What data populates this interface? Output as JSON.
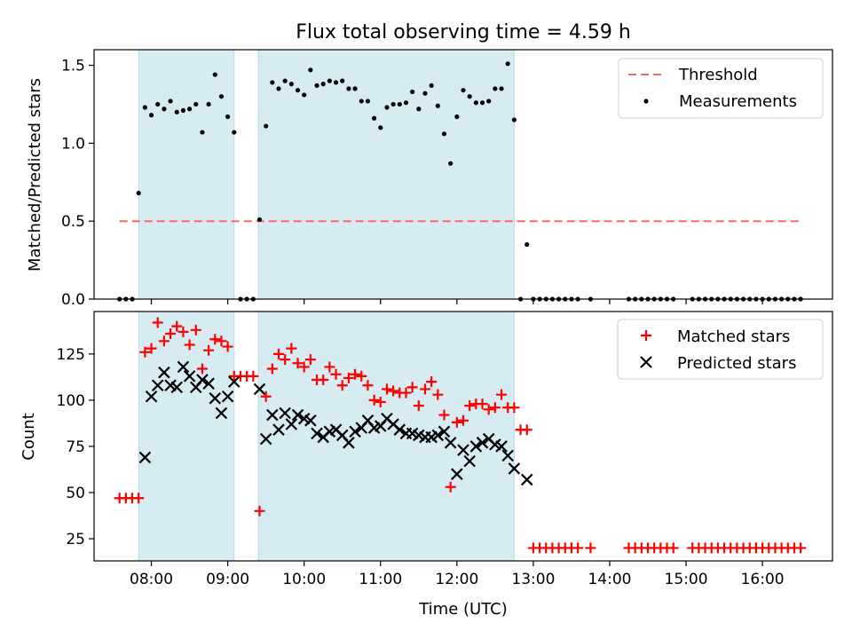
{
  "figure": {
    "title": "Flux total observing time = 4.59 h"
  },
  "chart_data": [
    {
      "type": "scatter",
      "panel": "top",
      "ylabel": "Matched/Predicted stars",
      "ylim": [
        0,
        1.6
      ],
      "yticks": [
        0.0,
        0.5,
        1.0,
        1.5
      ],
      "ytick_labels": [
        "0.0",
        "0.5",
        "1.0",
        "1.5"
      ],
      "grid": false,
      "legend_position": "top-right",
      "shaded_intervals": [
        {
          "start": "07:50",
          "end": "09:05"
        },
        {
          "start": "09:24",
          "end": "12:45"
        }
      ],
      "shade_color": "#add8e6",
      "threshold": {
        "name": "Threshold",
        "value": 0.5,
        "x_start": "07:35",
        "x_end": "16:30",
        "color": "#ff6666",
        "style": "dashed"
      },
      "series": [
        {
          "name": "Measurements",
          "color": "#000000",
          "marker": "dot",
          "x": [
            "07:35",
            "07:40",
            "07:45",
            "07:50",
            "07:55",
            "08:00",
            "08:05",
            "08:10",
            "08:15",
            "08:20",
            "08:25",
            "08:30",
            "08:35",
            "08:40",
            "08:45",
            "08:50",
            "08:55",
            "09:00",
            "09:05",
            "09:10",
            "09:15",
            "09:20",
            "09:25",
            "09:30",
            "09:35",
            "09:40",
            "09:45",
            "09:50",
            "09:55",
            "10:00",
            "10:05",
            "10:10",
            "10:15",
            "10:20",
            "10:25",
            "10:30",
            "10:35",
            "10:40",
            "10:45",
            "10:50",
            "10:55",
            "11:00",
            "11:05",
            "11:10",
            "11:15",
            "11:20",
            "11:25",
            "11:30",
            "11:35",
            "11:40",
            "11:45",
            "11:50",
            "11:55",
            "12:00",
            "12:05",
            "12:10",
            "12:15",
            "12:20",
            "12:25",
            "12:30",
            "12:35",
            "12:40",
            "12:45",
            "12:50",
            "12:55",
            "13:00",
            "13:05",
            "13:10",
            "13:15",
            "13:20",
            "13:25",
            "13:30",
            "13:35",
            "13:45",
            "14:15",
            "14:20",
            "14:25",
            "14:30",
            "14:35",
            "14:40",
            "14:45",
            "14:50",
            "15:05",
            "15:10",
            "15:15",
            "15:20",
            "15:25",
            "15:30",
            "15:35",
            "15:40",
            "15:45",
            "15:50",
            "15:55",
            "16:00",
            "16:05",
            "16:10",
            "16:15",
            "16:20",
            "16:25",
            "16:30"
          ],
          "y": [
            0,
            0,
            0,
            0.68,
            1.23,
            1.18,
            1.25,
            1.22,
            1.27,
            1.2,
            1.21,
            1.22,
            1.25,
            1.07,
            1.25,
            1.44,
            1.3,
            1.17,
            1.07,
            0,
            0,
            0,
            0.51,
            1.11,
            1.39,
            1.35,
            1.4,
            1.38,
            1.34,
            1.31,
            1.47,
            1.37,
            1.38,
            1.4,
            1.39,
            1.4,
            1.35,
            1.35,
            1.27,
            1.27,
            1.16,
            1.1,
            1.23,
            1.25,
            1.25,
            1.26,
            1.33,
            1.22,
            1.32,
            1.37,
            1.24,
            1.06,
            0.87,
            1.17,
            1.34,
            1.3,
            1.26,
            1.26,
            1.27,
            1.35,
            1.35,
            1.51,
            1.15,
            0,
            0.35,
            0,
            0,
            0,
            0,
            0,
            0,
            0,
            0,
            0,
            0,
            0,
            0,
            0,
            0,
            0,
            0,
            0,
            0,
            0,
            0,
            0,
            0,
            0,
            0,
            0,
            0,
            0,
            0,
            0,
            0,
            0,
            0,
            0,
            0,
            0
          ]
        }
      ]
    },
    {
      "type": "scatter",
      "panel": "bottom",
      "xlabel": "Time (UTC)",
      "ylabel": "Count",
      "ylim": [
        13,
        148
      ],
      "yticks": [
        25,
        50,
        75,
        100,
        125
      ],
      "ytick_labels": [
        "25",
        "50",
        "75",
        "100",
        "125"
      ],
      "xlim": [
        "07:15",
        "16:55"
      ],
      "xticks": [
        "08:00",
        "09:00",
        "10:00",
        "11:00",
        "12:00",
        "13:00",
        "14:00",
        "15:00",
        "16:00"
      ],
      "grid": false,
      "legend_position": "top-right",
      "shaded_intervals": [
        {
          "start": "07:50",
          "end": "09:05"
        },
        {
          "start": "09:24",
          "end": "12:45"
        }
      ],
      "shade_color": "#add8e6",
      "series": [
        {
          "name": "Matched stars",
          "color": "#ff0000",
          "marker": "plus",
          "x": [
            "07:35",
            "07:40",
            "07:45",
            "07:50",
            "07:55",
            "08:00",
            "08:05",
            "08:10",
            "08:15",
            "08:20",
            "08:25",
            "08:30",
            "08:35",
            "08:40",
            "08:45",
            "08:50",
            "08:55",
            "09:00",
            "09:05",
            "09:10",
            "09:15",
            "09:20",
            "09:25",
            "09:30",
            "09:35",
            "09:40",
            "09:45",
            "09:50",
            "09:55",
            "10:00",
            "10:05",
            "10:10",
            "10:15",
            "10:20",
            "10:25",
            "10:30",
            "10:35",
            "10:40",
            "10:45",
            "10:50",
            "10:55",
            "11:00",
            "11:05",
            "11:10",
            "11:15",
            "11:20",
            "11:25",
            "11:30",
            "11:35",
            "11:40",
            "11:45",
            "11:50",
            "11:55",
            "12:00",
            "12:05",
            "12:10",
            "12:15",
            "12:20",
            "12:25",
            "12:30",
            "12:35",
            "12:40",
            "12:45",
            "12:50",
            "12:55",
            "13:00",
            "13:05",
            "13:10",
            "13:15",
            "13:20",
            "13:25",
            "13:30",
            "13:35",
            "13:45",
            "14:15",
            "14:20",
            "14:25",
            "14:30",
            "14:35",
            "14:40",
            "14:45",
            "14:50",
            "15:05",
            "15:10",
            "15:15",
            "15:20",
            "15:25",
            "15:30",
            "15:35",
            "15:40",
            "15:45",
            "15:50",
            "15:55",
            "16:00",
            "16:05",
            "16:10",
            "16:15",
            "16:20",
            "16:25",
            "16:30"
          ],
          "y": [
            47,
            47,
            47,
            47,
            126,
            128,
            142,
            132,
            136,
            140,
            137,
            130,
            138,
            117,
            127,
            133,
            132,
            129,
            113,
            113,
            113,
            113,
            40,
            102,
            117,
            125,
            122,
            128,
            120,
            118,
            122,
            111,
            111,
            118,
            114,
            108,
            112,
            114,
            113,
            108,
            100,
            99,
            106,
            105,
            104,
            104,
            107,
            97,
            106,
            110,
            103,
            92,
            53,
            88,
            89,
            97,
            98,
            98,
            95,
            96,
            103,
            96,
            96,
            84,
            84,
            20,
            20,
            20,
            20,
            20,
            20,
            20,
            20,
            20,
            20,
            20,
            20,
            20,
            20,
            20,
            20,
            20,
            20,
            20,
            20,
            20,
            20,
            20,
            20,
            20,
            20,
            20,
            20,
            20,
            20,
            20,
            20,
            20,
            20,
            20
          ]
        },
        {
          "name": "Predicted stars",
          "color": "#000000",
          "marker": "x",
          "x": [
            "07:55",
            "08:00",
            "08:05",
            "08:10",
            "08:15",
            "08:20",
            "08:25",
            "08:30",
            "08:35",
            "08:40",
            "08:45",
            "08:50",
            "08:55",
            "09:00",
            "09:05",
            "09:25",
            "09:30",
            "09:35",
            "09:40",
            "09:45",
            "09:50",
            "09:55",
            "10:00",
            "10:05",
            "10:10",
            "10:15",
            "10:20",
            "10:25",
            "10:30",
            "10:35",
            "10:40",
            "10:45",
            "10:50",
            "10:55",
            "11:00",
            "11:05",
            "11:10",
            "11:15",
            "11:20",
            "11:25",
            "11:30",
            "11:35",
            "11:40",
            "11:45",
            "11:50",
            "11:55",
            "12:00",
            "12:05",
            "12:10",
            "12:15",
            "12:20",
            "12:25",
            "12:30",
            "12:35",
            "12:40",
            "12:45",
            "12:55"
          ],
          "y": [
            69,
            102,
            108,
            115,
            108,
            107,
            118,
            113,
            107,
            111,
            109,
            101,
            93,
            102,
            110,
            106,
            79,
            92,
            84,
            93,
            87,
            92,
            90,
            89,
            82,
            80,
            83,
            84,
            81,
            77,
            83,
            85,
            89,
            85,
            86,
            90,
            87,
            84,
            82,
            82,
            81,
            80,
            80,
            81,
            83,
            77,
            60,
            73,
            67,
            75,
            77,
            79,
            76,
            75,
            70,
            63,
            57
          ]
        }
      ]
    }
  ]
}
